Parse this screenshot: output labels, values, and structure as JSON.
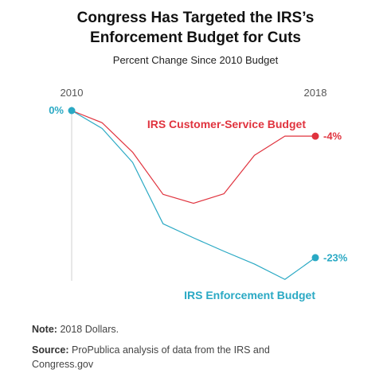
{
  "title_line1": "Congress Has Targeted the IRS’s",
  "title_line2": "Enforcement Budget for Cuts",
  "notes": {
    "note_label": "Note:",
    "note_text": "2018 Dollars.",
    "source_label": "Source:",
    "source_line1": "ProPublica analysis of data from the IRS and",
    "source_line2": "Congress.gov"
  },
  "chart_data": {
    "type": "line",
    "title": "Congress Has Targeted the IRS’s Enforcement Budget for Cuts",
    "subtitle": "Percent Change Since 2010 Budget",
    "x": [
      2010,
      2011,
      2012,
      2013,
      2014,
      2015,
      2016,
      2017,
      2018
    ],
    "x_tick_labels": [
      "2010",
      "2018"
    ],
    "start_label": "0%",
    "ylim": [
      -25,
      1
    ],
    "grid": false,
    "series": [
      {
        "name": "IRS Customer-Service Budget",
        "color": "#e0333e",
        "values": [
          0,
          -1.9,
          -6.5,
          -13.1,
          -14.5,
          -13.0,
          -7.0,
          -4.0,
          -4.0
        ],
        "end_label": "-4%"
      },
      {
        "name": "IRS Enforcement Budget",
        "color": "#2aa9c4",
        "values": [
          0,
          -2.8,
          -8.1,
          -17.7,
          -19.9,
          -22.0,
          -24.0,
          -26.4,
          -23.0
        ],
        "end_label": "-23%"
      }
    ]
  }
}
